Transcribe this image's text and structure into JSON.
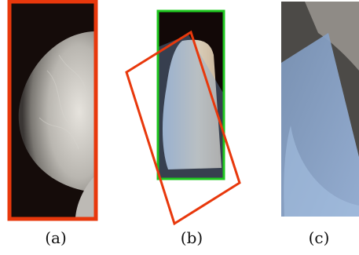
{
  "panels": [
    {
      "id": "a",
      "caption": "(a)"
    },
    {
      "id": "b",
      "caption": "(b)"
    },
    {
      "id": "c",
      "caption": "(c)"
    }
  ],
  "colors": {
    "frame_red": "#e8380c",
    "frame_green": "#1fc81f",
    "overlay_blue": "#7ea6d8",
    "background_dark": "#1a0d0a",
    "tissue_light": "#e8e4dc"
  }
}
